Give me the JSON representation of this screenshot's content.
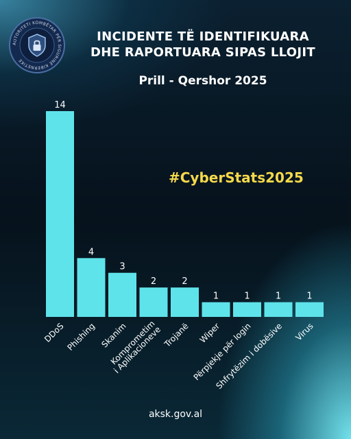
{
  "header": {
    "title_line1": "INCIDENTE TË IDENTIFIKUARA",
    "title_line2": "DHE RAPORTUARA SIPAS LLOJIT",
    "subtitle": "Prill - Qershor 2025",
    "logo_text": "AUTORITETI KOMBËTAR PËR SIGURINË KIBERNETIKE"
  },
  "hashtag": "#CyberStats2025",
  "footer": "aksk.gov.al",
  "colors": {
    "bar": "#5fe3ea",
    "hashtag": "#f5d94a",
    "text": "#ffffff"
  },
  "chart_data": {
    "type": "bar",
    "categories": [
      "DDoS",
      "Phishing",
      "Skanim",
      "Komprometim i Aplikacioneve",
      "Trojanë",
      "Wiper",
      "Përpjekje për login",
      "Shfrytëzim i dobësive",
      "Virus"
    ],
    "category_lines": [
      [
        "DDoS"
      ],
      [
        "Phishing"
      ],
      [
        "Skanim"
      ],
      [
        "Komprometim",
        "i Aplikacioneve"
      ],
      [
        "Trojanë"
      ],
      [
        "Wiper"
      ],
      [
        "Përpjekje për login"
      ],
      [
        "Shfrytëzim i dobësive"
      ],
      [
        "Virus"
      ]
    ],
    "values": [
      14,
      4,
      3,
      2,
      2,
      1,
      1,
      1,
      1
    ],
    "ylim": [
      0,
      14
    ],
    "grid": false,
    "legend": "none"
  }
}
